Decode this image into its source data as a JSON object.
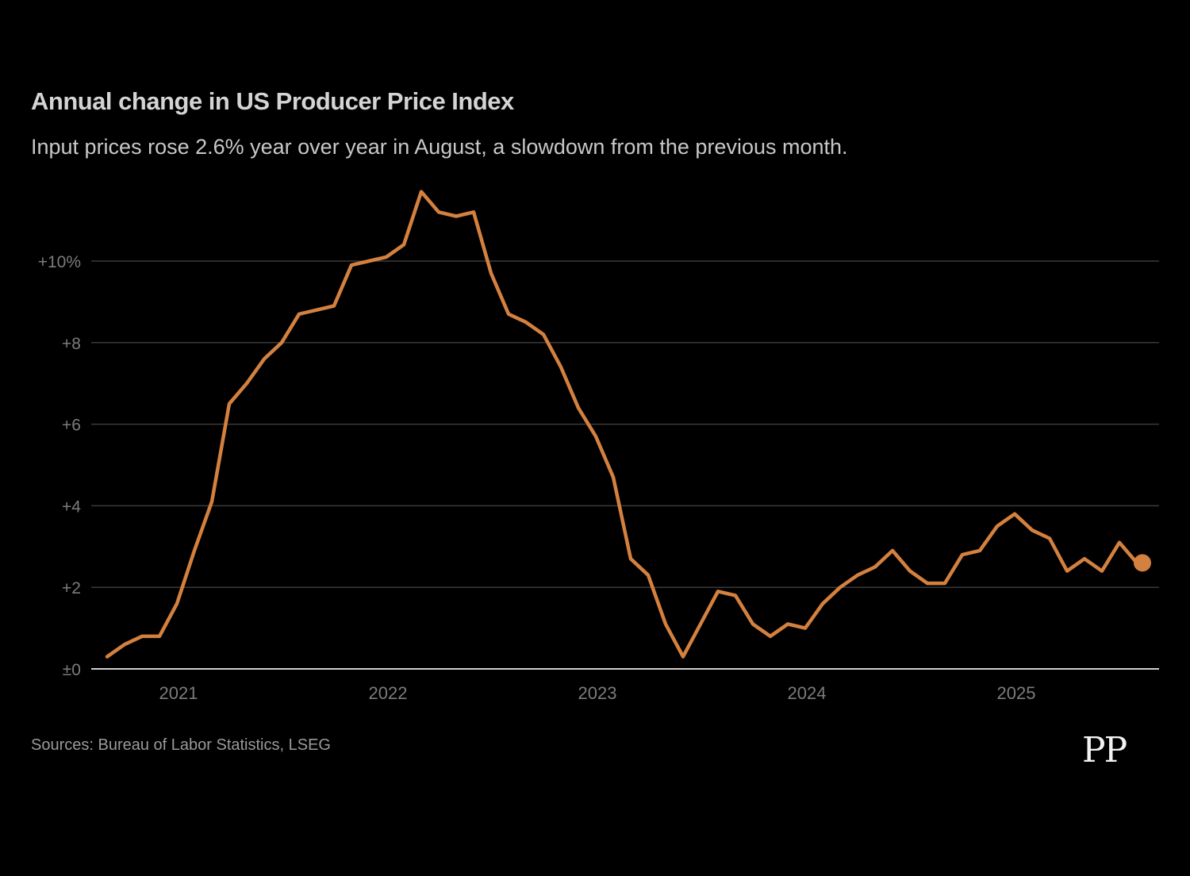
{
  "header": {
    "title": "Annual change in US Producer Price Index",
    "subtitle": "Input prices rose 2.6% year over year in August, a slowdown from the previous month."
  },
  "footer": {
    "source": "Sources: Bureau of Labor Statistics, LSEG",
    "logo": "PP"
  },
  "colors": {
    "line": "#d4813f",
    "grid": "#3a3a3a",
    "baseline": "#cfcfcf",
    "tick_label": "#7c7c7c"
  },
  "chart_data": {
    "type": "line",
    "title": "Annual change in US Producer Price Index",
    "subtitle": "Input prices rose 2.6% year over year in August, a slowdown from the previous month.",
    "xlabel": "",
    "ylabel": "",
    "ylim": [
      0,
      12
    ],
    "yticks": [
      0,
      2,
      4,
      6,
      8,
      10
    ],
    "ytick_labels": [
      "±0",
      "+2",
      "+4",
      "+6",
      "+8",
      "+10%"
    ],
    "xticks": [
      "2021",
      "2022",
      "2023",
      "2024",
      "2025"
    ],
    "grid": true,
    "legend": "none",
    "x_start": "2020-09",
    "x_end": "2025-08",
    "series": [
      {
        "name": "PPI annual change (%)",
        "end_marker": true,
        "x": [
          "2020-09",
          "2020-10",
          "2020-11",
          "2020-12",
          "2021-01",
          "2021-02",
          "2021-03",
          "2021-04",
          "2021-05",
          "2021-06",
          "2021-07",
          "2021-08",
          "2021-09",
          "2021-10",
          "2021-11",
          "2021-12",
          "2022-01",
          "2022-02",
          "2022-03",
          "2022-04",
          "2022-05",
          "2022-06",
          "2022-07",
          "2022-08",
          "2022-09",
          "2022-10",
          "2022-11",
          "2022-12",
          "2023-01",
          "2023-02",
          "2023-03",
          "2023-04",
          "2023-05",
          "2023-06",
          "2023-07",
          "2023-08",
          "2023-09",
          "2023-10",
          "2023-11",
          "2023-12",
          "2024-01",
          "2024-02",
          "2024-03",
          "2024-04",
          "2024-05",
          "2024-06",
          "2024-07",
          "2024-08",
          "2024-09",
          "2024-10",
          "2024-11",
          "2024-12",
          "2025-01",
          "2025-02",
          "2025-03",
          "2025-04",
          "2025-05",
          "2025-06",
          "2025-07",
          "2025-08"
        ],
        "values": [
          0.3,
          0.6,
          0.8,
          0.8,
          1.6,
          2.9,
          4.1,
          6.5,
          7.0,
          7.6,
          8.0,
          8.7,
          8.8,
          8.9,
          9.9,
          10.0,
          10.1,
          10.4,
          11.7,
          11.2,
          11.1,
          11.2,
          9.7,
          8.7,
          8.5,
          8.2,
          7.4,
          6.4,
          5.7,
          4.7,
          2.7,
          2.3,
          1.1,
          0.3,
          1.1,
          1.9,
          1.8,
          1.1,
          0.8,
          1.1,
          1.0,
          1.6,
          2.0,
          2.3,
          2.5,
          2.9,
          2.4,
          2.1,
          2.1,
          2.8,
          2.9,
          3.5,
          3.8,
          3.4,
          3.2,
          2.4,
          2.7,
          2.4,
          3.1,
          2.6
        ]
      }
    ]
  }
}
